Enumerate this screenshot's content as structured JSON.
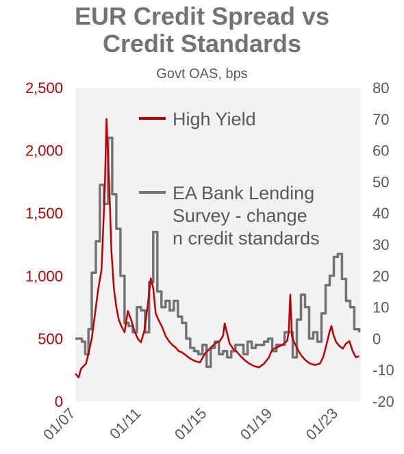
{
  "chart_data": {
    "type": "line",
    "title_line1": "EUR Credit Spread vs",
    "title_line2": "Credit Standards",
    "subtitle": "Govt OAS, bps",
    "x_tick_labels": [
      "01/07",
      "01/11",
      "01/15",
      "01/19",
      "01/23"
    ],
    "left_axis": {
      "ylim": [
        0,
        2500
      ],
      "ticks": [
        0,
        500,
        1000,
        1500,
        2000,
        2500
      ],
      "tick_labels": [
        "0",
        "500",
        "1,000",
        "1,500",
        "2,000",
        "2,500"
      ]
    },
    "right_axis": {
      "ylim": [
        -20,
        80
      ],
      "ticks": [
        -20,
        -10,
        0,
        10,
        20,
        30,
        40,
        50,
        60,
        70,
        80
      ],
      "tick_labels": [
        "-20",
        "-10",
        "0",
        "10",
        "20",
        "30",
        "40",
        "50",
        "60",
        "70",
        "80"
      ]
    },
    "grid": false,
    "colors": {
      "high_yield": "#C00000",
      "bank_lending": "#737373",
      "plot_bg": "#F2F2F2",
      "left_axis_text": "#C00000",
      "right_axis_text": "#595959"
    },
    "series": [
      {
        "name": "High Yield",
        "axis": "left",
        "label": "High Yield",
        "x": [
          2007.0,
          2007.2,
          2007.35,
          2007.5,
          2007.65,
          2007.8,
          2008.0,
          2008.2,
          2008.4,
          2008.6,
          2008.8,
          2008.9,
          2009.0,
          2009.1,
          2009.2,
          2009.35,
          2009.5,
          2009.65,
          2009.8,
          2010.0,
          2010.2,
          2010.4,
          2010.6,
          2010.8,
          2011.0,
          2011.2,
          2011.4,
          2011.6,
          2011.75,
          2011.9,
          2012.1,
          2012.3,
          2012.5,
          2012.7,
          2012.9,
          2013.1,
          2013.3,
          2013.5,
          2013.8,
          2014.0,
          2014.3,
          2014.6,
          2014.9,
          2015.2,
          2015.5,
          2015.8,
          2016.0,
          2016.1,
          2016.25,
          2016.4,
          2016.6,
          2016.8,
          2017.0,
          2017.3,
          2017.6,
          2017.9,
          2018.2,
          2018.5,
          2018.8,
          2018.95,
          2019.1,
          2019.3,
          2019.6,
          2019.9,
          2020.0,
          2020.1,
          2020.2,
          2020.3,
          2020.45,
          2020.6,
          2020.8,
          2021.0,
          2021.3,
          2021.6,
          2021.9,
          2022.1,
          2022.3,
          2022.5,
          2022.6,
          2022.75,
          2022.9,
          2023.1,
          2023.3,
          2023.5,
          2023.7,
          2023.9,
          2024.1,
          2024.3
        ],
        "values": [
          220,
          190,
          260,
          280,
          300,
          380,
          500,
          700,
          900,
          1050,
          1700,
          2250,
          1950,
          1600,
          1200,
          900,
          750,
          650,
          600,
          550,
          720,
          650,
          560,
          500,
          470,
          560,
          750,
          980,
          900,
          700,
          640,
          590,
          520,
          480,
          450,
          430,
          400,
          390,
          360,
          340,
          320,
          310,
          380,
          420,
          460,
          480,
          520,
          620,
          540,
          460,
          420,
          400,
          370,
          330,
          300,
          280,
          270,
          300,
          350,
          400,
          420,
          430,
          450,
          480,
          550,
          850,
          520,
          480,
          440,
          400,
          360,
          330,
          300,
          290,
          300,
          350,
          450,
          560,
          600,
          520,
          470,
          440,
          420,
          460,
          480,
          400,
          350,
          360
        ]
      },
      {
        "name": "EA Bank Lending Survey - change in credit standards",
        "axis": "right",
        "label": "EA Bank Lending Survey - change in credit standards",
        "step": true,
        "x": [
          2007.0,
          2007.4,
          2007.6,
          2007.8,
          2008.0,
          2008.25,
          2008.5,
          2008.75,
          2009.0,
          2009.25,
          2009.5,
          2009.75,
          2010.0,
          2010.25,
          2010.5,
          2010.75,
          2011.0,
          2011.25,
          2011.5,
          2011.75,
          2012.0,
          2012.25,
          2012.5,
          2012.75,
          2013.0,
          2013.25,
          2013.5,
          2013.75,
          2014.0,
          2014.25,
          2014.5,
          2014.75,
          2015.0,
          2015.25,
          2015.5,
          2015.75,
          2016.0,
          2016.25,
          2016.5,
          2016.75,
          2017.0,
          2017.25,
          2017.5,
          2017.75,
          2018.0,
          2018.25,
          2018.5,
          2018.75,
          2019.0,
          2019.25,
          2019.5,
          2019.75,
          2020.0,
          2020.25,
          2020.5,
          2020.75,
          2021.0,
          2021.25,
          2021.5,
          2021.75,
          2022.0,
          2022.25,
          2022.5,
          2022.75,
          2023.0,
          2023.25,
          2023.5,
          2023.75,
          2024.0,
          2024.3
        ],
        "values": [
          0,
          -1,
          -5,
          3,
          21,
          31,
          49,
          43,
          64,
          46,
          35,
          20,
          5,
          4,
          2,
          10,
          9,
          2,
          18,
          34,
          15,
          10,
          12,
          9,
          12,
          7,
          5,
          0,
          -3,
          -4,
          -5,
          -2,
          -9,
          -3,
          -1,
          -5,
          -4,
          -6,
          -4,
          -2,
          -2,
          -5,
          -1,
          -3,
          -2,
          -2,
          -1,
          0,
          -4,
          -2,
          -2,
          2,
          2,
          -6,
          6,
          14,
          10,
          0,
          2,
          -1,
          8,
          17,
          20,
          26,
          27,
          19,
          12,
          10,
          3,
          2
        ]
      }
    ]
  }
}
